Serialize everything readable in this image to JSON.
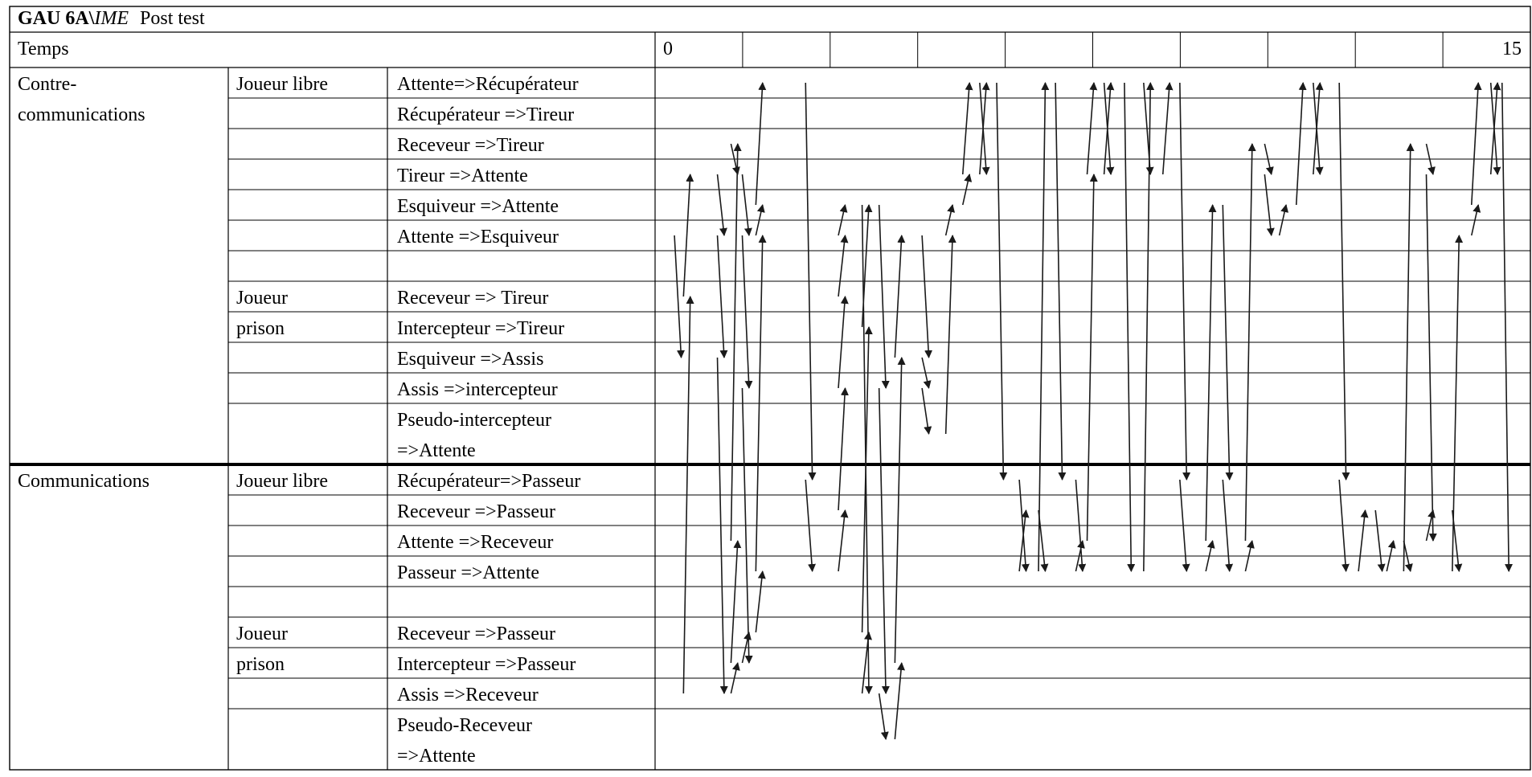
{
  "header": {
    "title_prefix": "GAU 6A\\",
    "title_italic": "IME",
    "title_suffix": "Post test"
  },
  "time": {
    "label": "Temps",
    "start": "0",
    "end": "15"
  },
  "sections": {
    "counter": "Contre-communications",
    "comm": "Communications"
  },
  "groups": {
    "free": "Joueur libre",
    "prison": "Joueur prison"
  },
  "rows": [
    {
      "id": "r1",
      "label": "Attente=>Récupérateur"
    },
    {
      "id": "r2",
      "label": "Récupérateur =>Tireur"
    },
    {
      "id": "r3",
      "label": "Receveur =>Tireur"
    },
    {
      "id": "r4",
      "label": "Tireur =>Attente"
    },
    {
      "id": "r5",
      "label": "Esquiveur =>Attente"
    },
    {
      "id": "r6",
      "label": "Attente =>Esquiveur"
    },
    {
      "id": "r7",
      "label": ""
    },
    {
      "id": "r8",
      "label": "Receveur => Tireur"
    },
    {
      "id": "r9",
      "label": "Intercepteur =>Tireur"
    },
    {
      "id": "r10",
      "label": "Esquiveur =>Assis"
    },
    {
      "id": "r11",
      "label": "Assis =>intercepteur"
    },
    {
      "id": "r12",
      "label": "Pseudo-intercepteur =>Attente"
    },
    {
      "id": "r13",
      "label": "Récupérateur=>Passeur"
    },
    {
      "id": "r14",
      "label": "Receveur =>Passeur"
    },
    {
      "id": "r15",
      "label": "Attente =>Receveur"
    },
    {
      "id": "r16",
      "label": "Passeur =>Attente"
    },
    {
      "id": "r17",
      "label": ""
    },
    {
      "id": "r18",
      "label": "Receveur =>Passeur"
    },
    {
      "id": "r19",
      "label": "Intercepteur =>Passeur"
    },
    {
      "id": "r20",
      "label": "Assis =>Receveur"
    },
    {
      "id": "r21",
      "label": "Pseudo-Receveur =>Attente"
    }
  ],
  "transitions": [
    {
      "t": 0.1,
      "from": "r6",
      "to": "r10"
    },
    {
      "t": 0.18,
      "from": "r20",
      "to": "r8"
    },
    {
      "t": 0.18,
      "from": "r8",
      "to": "r4"
    },
    {
      "t": 0.48,
      "from": "r4",
      "to": "r6"
    },
    {
      "t": 0.48,
      "from": "r6",
      "to": "r10"
    },
    {
      "t": 0.48,
      "from": "r10",
      "to": "r20"
    },
    {
      "t": 0.6,
      "from": "r20",
      "to": "r19"
    },
    {
      "t": 0.6,
      "from": "r19",
      "to": "r15"
    },
    {
      "t": 0.6,
      "from": "r15",
      "to": "r3"
    },
    {
      "t": 0.6,
      "from": "r3",
      "to": "r4"
    },
    {
      "t": 0.7,
      "from": "r4",
      "to": "r6"
    },
    {
      "t": 0.7,
      "from": "r6",
      "to": "r11"
    },
    {
      "t": 0.7,
      "from": "r11",
      "to": "r19"
    },
    {
      "t": 0.7,
      "from": "r19",
      "to": "r18"
    },
    {
      "t": 0.82,
      "from": "r18",
      "to": "r16"
    },
    {
      "t": 0.82,
      "from": "r16",
      "to": "r6"
    },
    {
      "t": 0.82,
      "from": "r6",
      "to": "r5"
    },
    {
      "t": 0.82,
      "from": "r5",
      "to": "r1"
    },
    {
      "t": 1.26,
      "from": "r1",
      "to": "r13"
    },
    {
      "t": 1.26,
      "from": "r13",
      "to": "r16"
    },
    {
      "t": 1.55,
      "from": "r16",
      "to": "r14"
    },
    {
      "t": 1.55,
      "from": "r14",
      "to": "r11"
    },
    {
      "t": 1.55,
      "from": "r11",
      "to": "r8"
    },
    {
      "t": 1.55,
      "from": "r8",
      "to": "r6"
    },
    {
      "t": 1.55,
      "from": "r6",
      "to": "r5"
    },
    {
      "t": 1.76,
      "from": "r5",
      "to": "r20"
    },
    {
      "t": 1.76,
      "from": "r20",
      "to": "r18"
    },
    {
      "t": 1.76,
      "from": "r18",
      "to": "r9"
    },
    {
      "t": 1.76,
      "from": "r9",
      "to": "r5"
    },
    {
      "t": 1.91,
      "from": "r5",
      "to": "r11"
    },
    {
      "t": 1.91,
      "from": "r11",
      "to": "r20"
    },
    {
      "t": 1.91,
      "from": "r20",
      "to": "r21"
    },
    {
      "t": 2.05,
      "from": "r21",
      "to": "r19"
    },
    {
      "t": 2.05,
      "from": "r19",
      "to": "r10"
    },
    {
      "t": 2.05,
      "from": "r10",
      "to": "r6"
    },
    {
      "t": 2.29,
      "from": "r6",
      "to": "r10"
    },
    {
      "t": 2.29,
      "from": "r10",
      "to": "r11"
    },
    {
      "t": 2.29,
      "from": "r11",
      "to": "r12"
    },
    {
      "t": 2.5,
      "from": "r12",
      "to": "r6"
    },
    {
      "t": 2.5,
      "from": "r6",
      "to": "r5"
    },
    {
      "t": 2.65,
      "from": "r5",
      "to": "r4"
    },
    {
      "t": 2.65,
      "from": "r4",
      "to": "r1"
    },
    {
      "t": 2.8,
      "from": "r1",
      "to": "r4"
    },
    {
      "t": 2.8,
      "from": "r4",
      "to": "r1"
    },
    {
      "t": 2.95,
      "from": "r1",
      "to": "r13"
    },
    {
      "t": 3.15,
      "from": "r13",
      "to": "r16"
    },
    {
      "t": 3.15,
      "from": "r16",
      "to": "r14"
    },
    {
      "t": 3.32,
      "from": "r14",
      "to": "r16"
    },
    {
      "t": 3.32,
      "from": "r16",
      "to": "r1"
    },
    {
      "t": 3.47,
      "from": "r1",
      "to": "r13"
    },
    {
      "t": 3.65,
      "from": "r13",
      "to": "r16"
    },
    {
      "t": 3.65,
      "from": "r16",
      "to": "r15"
    },
    {
      "t": 3.75,
      "from": "r15",
      "to": "r4"
    },
    {
      "t": 3.75,
      "from": "r4",
      "to": "r1"
    },
    {
      "t": 3.9,
      "from": "r1",
      "to": "r4"
    },
    {
      "t": 3.9,
      "from": "r4",
      "to": "r1"
    },
    {
      "t": 4.08,
      "from": "r1",
      "to": "r16"
    },
    {
      "t": 4.25,
      "from": "r16",
      "to": "r1"
    },
    {
      "t": 4.25,
      "from": "r1",
      "to": "r4"
    },
    {
      "t": 4.42,
      "from": "r4",
      "to": "r1"
    },
    {
      "t": 4.57,
      "from": "r1",
      "to": "r13"
    },
    {
      "t": 4.57,
      "from": "r13",
      "to": "r16"
    },
    {
      "t": 4.8,
      "from": "r16",
      "to": "r15"
    },
    {
      "t": 4.8,
      "from": "r15",
      "to": "r5"
    },
    {
      "t": 4.95,
      "from": "r5",
      "to": "r13"
    },
    {
      "t": 4.95,
      "from": "r13",
      "to": "r16"
    },
    {
      "t": 5.15,
      "from": "r16",
      "to": "r15"
    },
    {
      "t": 5.15,
      "from": "r15",
      "to": "r3"
    },
    {
      "t": 5.32,
      "from": "r3",
      "to": "r4"
    },
    {
      "t": 5.32,
      "from": "r4",
      "to": "r6"
    },
    {
      "t": 5.45,
      "from": "r6",
      "to": "r5"
    },
    {
      "t": 5.6,
      "from": "r5",
      "to": "r1"
    },
    {
      "t": 5.75,
      "from": "r1",
      "to": "r4"
    },
    {
      "t": 5.75,
      "from": "r4",
      "to": "r1"
    },
    {
      "t": 5.98,
      "from": "r1",
      "to": "r13"
    },
    {
      "t": 5.98,
      "from": "r13",
      "to": "r16"
    },
    {
      "t": 6.15,
      "from": "r16",
      "to": "r14"
    },
    {
      "t": 6.3,
      "from": "r14",
      "to": "r16"
    },
    {
      "t": 6.4,
      "from": "r16",
      "to": "r15"
    },
    {
      "t": 6.55,
      "from": "r15",
      "to": "r16"
    },
    {
      "t": 6.55,
      "from": "r16",
      "to": "r3"
    },
    {
      "t": 6.75,
      "from": "r3",
      "to": "r4"
    },
    {
      "t": 6.75,
      "from": "r4",
      "to": "r15"
    },
    {
      "t": 6.75,
      "from": "r15",
      "to": "r14"
    },
    {
      "t": 6.98,
      "from": "r14",
      "to": "r16"
    },
    {
      "t": 6.98,
      "from": "r16",
      "to": "r6"
    },
    {
      "t": 7.15,
      "from": "r6",
      "to": "r5"
    },
    {
      "t": 7.15,
      "from": "r5",
      "to": "r1"
    },
    {
      "t": 7.32,
      "from": "r1",
      "to": "r4"
    },
    {
      "t": 7.32,
      "from": "r4",
      "to": "r1"
    },
    {
      "t": 7.42,
      "from": "r1",
      "to": "r16"
    }
  ]
}
